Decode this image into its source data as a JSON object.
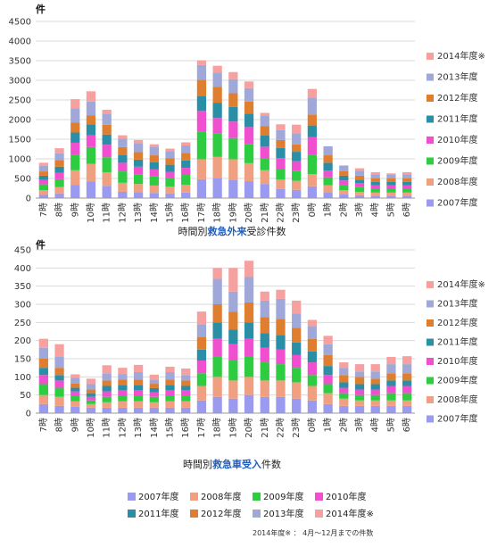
{
  "colors": {
    "2007年度": "#9a9af0",
    "2008年度": "#f0a080",
    "2009年度": "#2ecc40",
    "2010年度": "#f050d0",
    "2011年度": "#2a8fa6",
    "2012年度": "#e07e30",
    "2013年度": "#9fa8d8",
    "2014年度※": "#f7a0a0",
    "highlight": "#1f5fc0"
  },
  "legend_bottom": [
    "2007年度",
    "2008年度",
    "2009年度",
    "2010年度",
    "2011年度",
    "2012年度",
    "2013年度",
    "2014年度※"
  ],
  "footnote": "2014年度※ ： 4月～12月までの件数",
  "chart_data": [
    {
      "type": "bar",
      "stacked": true,
      "unit_label": "件",
      "title_parts": [
        "時間別",
        "救急外来",
        "受診件数"
      ],
      "categories": [
        "7時",
        "8時",
        "9時",
        "10時",
        "11時",
        "12時",
        "13時",
        "14時",
        "15時",
        "16時",
        "17時",
        "18時",
        "19時",
        "20時",
        "21時",
        "22時",
        "23時",
        "0時",
        "1時",
        "2時",
        "3時",
        "4時",
        "5時",
        "6時"
      ],
      "ylim": [
        0,
        4500
      ],
      "yticks": [
        0,
        500,
        1000,
        1500,
        2000,
        2500,
        3000,
        3500,
        4000,
        4500
      ],
      "grid": true,
      "legend_position": "right",
      "series": [
        {
          "name": "2007年度",
          "values": [
            80,
            120,
            330,
            420,
            310,
            160,
            150,
            130,
            120,
            140,
            480,
            500,
            470,
            430,
            360,
            230,
            210,
            300,
            150,
            90,
            70,
            60,
            60,
            60
          ]
        },
        {
          "name": "2008年度",
          "values": [
            120,
            160,
            380,
            450,
            350,
            230,
            210,
            190,
            170,
            200,
            510,
            550,
            520,
            460,
            350,
            240,
            230,
            310,
            180,
            110,
            90,
            80,
            80,
            80
          ]
        },
        {
          "name": "2009年度",
          "values": [
            150,
            200,
            400,
            430,
            380,
            290,
            250,
            240,
            220,
            250,
            700,
            590,
            540,
            490,
            300,
            280,
            260,
            500,
            200,
            140,
            120,
            110,
            110,
            110
          ]
        },
        {
          "name": "2010年度",
          "values": [
            110,
            160,
            300,
            300,
            320,
            220,
            190,
            170,
            160,
            180,
            530,
            400,
            420,
            430,
            300,
            270,
            240,
            440,
            170,
            110,
            100,
            80,
            80,
            80
          ]
        },
        {
          "name": "2011年度",
          "values": [
            110,
            160,
            260,
            280,
            260,
            200,
            180,
            180,
            180,
            190,
            380,
            390,
            370,
            340,
            290,
            260,
            240,
            300,
            200,
            120,
            90,
            80,
            80,
            80
          ]
        },
        {
          "name": "2012年度",
          "values": [
            110,
            170,
            250,
            230,
            250,
            200,
            190,
            180,
            170,
            190,
            410,
            400,
            350,
            310,
            230,
            200,
            190,
            280,
            190,
            120,
            100,
            90,
            90,
            90
          ]
        },
        {
          "name": "2013年度",
          "values": [
            140,
            170,
            370,
            350,
            280,
            220,
            230,
            220,
            180,
            190,
            380,
            370,
            360,
            340,
            270,
            250,
            280,
            430,
            230,
            140,
            130,
            110,
            100,
            110
          ]
        },
        {
          "name": "2014年度※",
          "values": [
            80,
            130,
            230,
            260,
            100,
            80,
            80,
            60,
            60,
            80,
            120,
            170,
            180,
            170,
            70,
            150,
            220,
            220,
            0,
            0,
            60,
            50,
            30,
            50
          ]
        }
      ]
    },
    {
      "type": "bar",
      "stacked": true,
      "unit_label": "件",
      "title_parts": [
        "時間別",
        "救急車受入",
        "件数"
      ],
      "categories": [
        "7時",
        "8時",
        "9時",
        "10時",
        "11時",
        "12時",
        "13時",
        "14時",
        "15時",
        "16時",
        "17時",
        "18時",
        "19時",
        "20時",
        "21時",
        "22時",
        "23時",
        "0時",
        "1時",
        "2時",
        "3時",
        "4時",
        "5時",
        "6時"
      ],
      "ylim": [
        0,
        450
      ],
      "yticks": [
        0,
        50,
        100,
        150,
        200,
        250,
        300,
        350,
        400,
        450
      ],
      "grid": true,
      "legend_position": "right",
      "series": [
        {
          "name": "2007年度",
          "values": [
            25,
            20,
            18,
            15,
            15,
            15,
            15,
            15,
            15,
            15,
            35,
            45,
            40,
            50,
            45,
            45,
            40,
            35,
            25,
            20,
            20,
            20,
            20,
            20
          ]
        },
        {
          "name": "2008年度",
          "values": [
            25,
            25,
            15,
            10,
            15,
            18,
            18,
            15,
            18,
            18,
            40,
            55,
            50,
            50,
            45,
            45,
            45,
            40,
            30,
            20,
            15,
            15,
            15,
            15
          ]
        },
        {
          "name": "2009年度",
          "values": [
            30,
            25,
            15,
            10,
            15,
            15,
            15,
            15,
            15,
            15,
            35,
            55,
            55,
            55,
            50,
            45,
            40,
            30,
            25,
            15,
            15,
            15,
            20,
            20
          ]
        },
        {
          "name": "2010年度",
          "values": [
            25,
            20,
            12,
            10,
            15,
            15,
            15,
            12,
            15,
            15,
            35,
            50,
            45,
            50,
            40,
            40,
            35,
            35,
            25,
            15,
            15,
            15,
            20,
            20
          ]
        },
        {
          "name": "2011年度",
          "values": [
            20,
            15,
            10,
            10,
            15,
            15,
            15,
            12,
            15,
            12,
            30,
            45,
            40,
            45,
            40,
            40,
            35,
            30,
            25,
            15,
            15,
            15,
            15,
            15
          ]
        },
        {
          "name": "2012年度",
          "values": [
            25,
            20,
            12,
            10,
            15,
            15,
            15,
            12,
            15,
            15,
            35,
            50,
            50,
            55,
            45,
            45,
            40,
            35,
            30,
            20,
            20,
            15,
            20,
            20
          ]
        },
        {
          "name": "2013年度",
          "values": [
            30,
            30,
            15,
            15,
            20,
            15,
            20,
            10,
            20,
            15,
            35,
            70,
            55,
            70,
            45,
            55,
            40,
            35,
            30,
            20,
            15,
            20,
            25,
            25
          ]
        },
        {
          "name": "2014年度※",
          "values": [
            25,
            35,
            10,
            15,
            22,
            17,
            20,
            15,
            15,
            18,
            35,
            30,
            65,
            45,
            25,
            25,
            35,
            17,
            23,
            15,
            20,
            20,
            20,
            22
          ]
        }
      ]
    }
  ]
}
